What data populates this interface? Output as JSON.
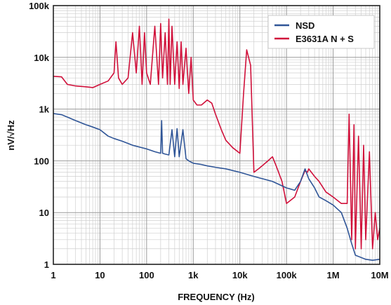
{
  "chart_data": {
    "type": "line",
    "title": "",
    "xlabel": "FREQUENCY (Hz)",
    "ylabel": "nV/√Hz",
    "x_scale": "log",
    "y_scale": "log",
    "xlim": [
      1,
      10000000
    ],
    "ylim": [
      1,
      100000
    ],
    "grid": true,
    "legend_position": "top-right",
    "x_tick_labels": [
      {
        "value": 1,
        "label": "1"
      },
      {
        "value": 10,
        "label": "10"
      },
      {
        "value": 100,
        "label": "100"
      },
      {
        "value": 1000,
        "label": "1k"
      },
      {
        "value": 10000,
        "label": "10k"
      },
      {
        "value": 100000,
        "label": "100k"
      },
      {
        "value": 1000000,
        "label": "1M"
      },
      {
        "value": 10000000,
        "label": "10M"
      }
    ],
    "y_tick_labels": [
      {
        "value": 1,
        "label": "1"
      },
      {
        "value": 10,
        "label": "10"
      },
      {
        "value": 100,
        "label": "100"
      },
      {
        "value": 1000,
        "label": "1k"
      },
      {
        "value": 10000,
        "label": "10k"
      },
      {
        "value": 100000,
        "label": "100k"
      }
    ],
    "series": [
      {
        "name": "NSD",
        "color": "#2f5597",
        "x": [
          1,
          1.5,
          2,
          3,
          5,
          7,
          10,
          15,
          20,
          30,
          50,
          100,
          150,
          200,
          210,
          220,
          250,
          300,
          350,
          400,
          450,
          500,
          600,
          700,
          800,
          1000,
          1500,
          2000,
          3000,
          5000,
          10000,
          20000,
          50000,
          100000,
          150000,
          200000,
          250000,
          300000,
          400000,
          500000,
          700000,
          1000000,
          1500000,
          2000000,
          2500000,
          3000000,
          5000000,
          7000000,
          10000000
        ],
        "y": [
          820,
          780,
          700,
          600,
          500,
          450,
          400,
          300,
          270,
          240,
          200,
          170,
          150,
          140,
          600,
          140,
          135,
          130,
          400,
          120,
          420,
          120,
          400,
          110,
          100,
          90,
          85,
          80,
          75,
          70,
          60,
          50,
          40,
          30,
          27,
          40,
          70,
          45,
          30,
          20,
          17,
          14,
          10,
          5,
          2.5,
          1.5,
          1.25,
          1.2,
          1.25
        ]
      },
      {
        "name": "E3631A N + S",
        "color": "#d0103a",
        "x": [
          1,
          1.5,
          2,
          3,
          5,
          7,
          10,
          15,
          20,
          22,
          25,
          30,
          40,
          50,
          60,
          70,
          80,
          90,
          100,
          120,
          150,
          180,
          200,
          220,
          250,
          280,
          300,
          320,
          350,
          400,
          450,
          500,
          550,
          600,
          700,
          800,
          900,
          1000,
          1200,
          1500,
          2000,
          2500,
          3000,
          4000,
          5000,
          7000,
          10000,
          12000,
          14000,
          17000,
          20000,
          25000,
          30000,
          40000,
          50000,
          60000,
          80000,
          100000,
          150000,
          200000,
          250000,
          280000,
          300000,
          400000,
          500000,
          700000,
          1000000,
          1500000,
          2000000,
          2200000,
          2500000,
          2800000,
          3000000,
          3500000,
          4000000,
          4500000,
          5000000,
          6000000,
          7000000,
          8000000,
          9000000,
          10000000
        ],
        "y": [
          4300,
          4200,
          3000,
          2800,
          2700,
          2600,
          3000,
          3500,
          5000,
          20000,
          4000,
          3000,
          4000,
          30000,
          5000,
          40000,
          3000,
          30000,
          5000,
          3000,
          40000,
          3000,
          45000,
          4000,
          30000,
          3000,
          55000,
          3000,
          40000,
          3000,
          20000,
          2500,
          20000,
          3000,
          15000,
          2000,
          10000,
          1500,
          1200,
          1200,
          1500,
          1300,
          800,
          400,
          250,
          180,
          140,
          2000,
          14000,
          7000,
          60,
          70,
          80,
          100,
          120,
          80,
          40,
          15,
          20,
          40,
          65,
          60,
          70,
          50,
          40,
          25,
          20,
          15,
          15,
          800,
          3,
          500,
          2,
          300,
          2,
          200,
          3,
          150,
          2,
          10,
          3,
          5
        ]
      }
    ]
  }
}
